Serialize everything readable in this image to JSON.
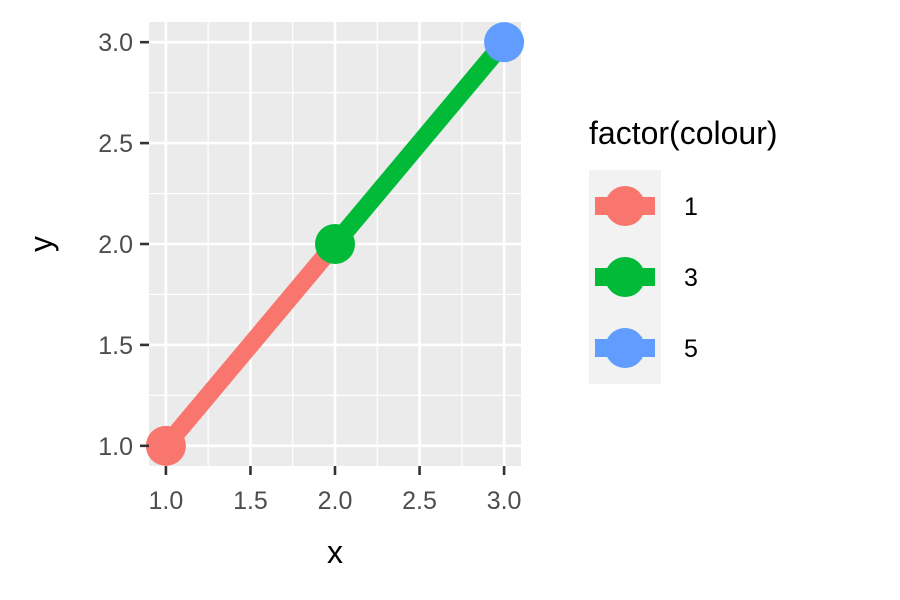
{
  "chart_data": {
    "type": "line",
    "x": [
      1,
      2,
      3
    ],
    "y": [
      1,
      2,
      3
    ],
    "colour": [
      "1",
      "3",
      "5"
    ],
    "segments": [
      {
        "from": [
          1,
          1
        ],
        "to": [
          2,
          2
        ],
        "colour": "1"
      },
      {
        "from": [
          2,
          2
        ],
        "to": [
          3,
          3
        ],
        "colour": "3"
      }
    ],
    "xlabel": "x",
    "ylabel": "y",
    "xlim": [
      0.9,
      3.1
    ],
    "ylim": [
      0.9,
      3.1
    ],
    "x_ticks": [
      1.0,
      1.5,
      2.0,
      2.5,
      3.0
    ],
    "y_ticks": [
      1.0,
      1.5,
      2.0,
      2.5,
      3.0
    ],
    "x_tick_labels": [
      "1.0",
      "1.5",
      "2.0",
      "2.5",
      "3.0"
    ],
    "y_tick_labels": [
      "1.0",
      "1.5",
      "2.0",
      "2.5",
      "3.0"
    ],
    "grid": true,
    "legend": {
      "title": "factor(colour)",
      "placement": "right",
      "entries": [
        {
          "label": "1",
          "color": "#F8766D"
        },
        {
          "label": "3",
          "color": "#00BA38"
        },
        {
          "label": "5",
          "color": "#619CFF"
        }
      ]
    },
    "panel_background": "#EBEBEB",
    "grid_color": "#FFFFFF"
  }
}
